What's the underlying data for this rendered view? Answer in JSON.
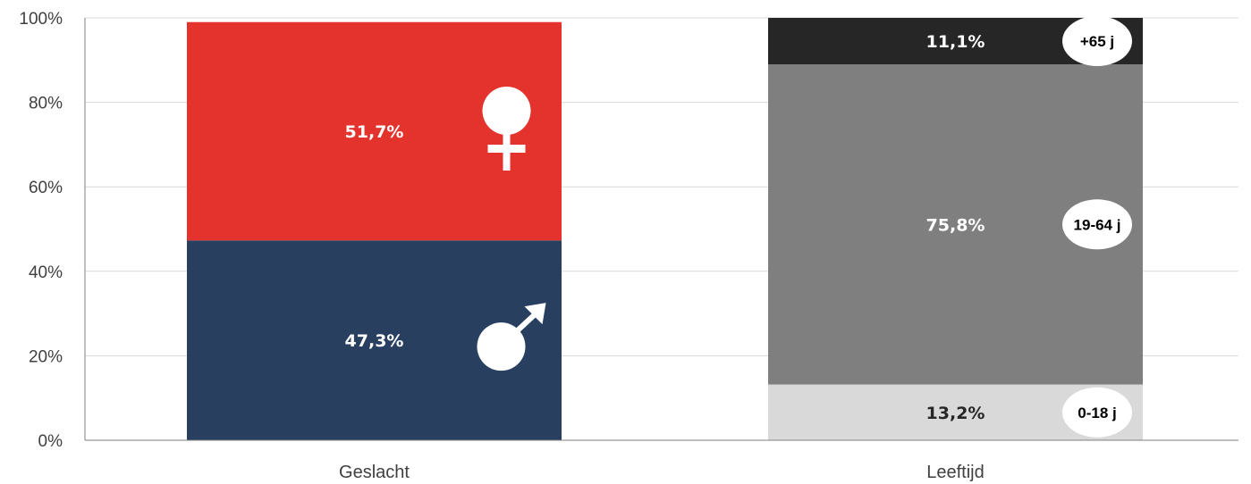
{
  "chart_data": {
    "type": "bar",
    "stacked": true,
    "normalized": true,
    "categories": [
      "Geslacht",
      "Leeftijd"
    ],
    "ylim": [
      0,
      100
    ],
    "yticks": [
      "0%",
      "20%",
      "40%",
      "60%",
      "80%",
      "100%"
    ],
    "grid": true,
    "legend": "none",
    "stacks": [
      {
        "category": "Geslacht",
        "segments": [
          {
            "value": 47.3,
            "label": "47,3%",
            "color": "#283f5f",
            "label_color": "#ffffff",
            "icon": "male-symbol-icon"
          },
          {
            "value": 51.7,
            "label": "51,7%",
            "color": "#e4322d",
            "label_color": "#ffffff",
            "icon": "female-symbol-icon"
          }
        ]
      },
      {
        "category": "Leeftijd",
        "segments": [
          {
            "value": 13.2,
            "label": "13,2%",
            "color": "#d9d9d9",
            "label_color": "#262626",
            "badge": "0-18 j"
          },
          {
            "value": 75.8,
            "label": "75,8%",
            "color": "#7f7f7f",
            "label_color": "#ffffff",
            "badge": "19-64 j"
          },
          {
            "value": 11.1,
            "label": "11,1%",
            "color": "#262626",
            "label_color": "#ffffff",
            "badge": "+65 j"
          }
        ]
      }
    ]
  },
  "colors": {
    "grid": "#d9d9d9",
    "axis": "#808080",
    "text": "#404040"
  }
}
